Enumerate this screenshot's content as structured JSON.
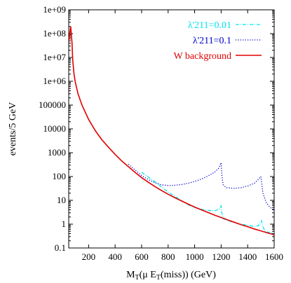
{
  "chart_data": {
    "type": "line",
    "xlabel": "M_T(μ E_T(miss)) (GeV)",
    "ylabel": "events/5 GeV",
    "xlim": [
      50,
      1600
    ],
    "ylim": [
      0.1,
      1000000000
    ],
    "yscale": "log",
    "x_ticks": [
      200,
      400,
      600,
      800,
      1000,
      1200,
      1400,
      1600
    ],
    "x_tick_labels": [
      "200",
      "400",
      "600",
      "800",
      "1000",
      "1200",
      "1400",
      "1600"
    ],
    "y_ticks": [
      0.1,
      1,
      10,
      100,
      1000,
      10000,
      100000,
      1000000,
      10000000,
      100000000,
      1000000000
    ],
    "y_tick_labels": [
      "0.1",
      "1",
      "10",
      "100",
      "1000",
      "10000",
      "100000",
      "1e+06",
      "1e+07",
      "1e+08",
      "1e+09"
    ],
    "grid": false,
    "legend_position": "top-right",
    "series": [
      {
        "name": "λ'211=0.01",
        "color": "#00e5ee",
        "style": "dash-dot",
        "points": [
          [
            600,
            150
          ],
          [
            700,
            60
          ],
          [
            800,
            22
          ],
          [
            900,
            10
          ],
          [
            950,
            6.5
          ],
          [
            1000,
            5
          ],
          [
            1050,
            4.2
          ],
          [
            1100,
            3.8
          ],
          [
            1150,
            3.6
          ],
          [
            1185,
            4.2
          ],
          [
            1200,
            5.8
          ],
          [
            1205,
            3
          ],
          [
            1215,
            1.7
          ],
          [
            1260,
            1.35
          ],
          [
            1300,
            1.15
          ],
          [
            1350,
            1
          ],
          [
            1400,
            0.9
          ],
          [
            1450,
            0.8
          ],
          [
            1480,
            0.85
          ],
          [
            1495,
            1.2
          ],
          [
            1505,
            1.4
          ],
          [
            1512,
            0.9
          ],
          [
            1530,
            0.5
          ],
          [
            1560,
            0.45
          ],
          [
            1600,
            0.42
          ]
        ]
      },
      {
        "name": "λ'211=0.1",
        "color": "#0000cc",
        "style": "dotted",
        "points": [
          [
            500,
            330
          ],
          [
            550,
            190
          ],
          [
            600,
            110
          ],
          [
            650,
            75
          ],
          [
            700,
            55
          ],
          [
            750,
            45
          ],
          [
            800,
            42
          ],
          [
            850,
            43
          ],
          [
            900,
            46
          ],
          [
            950,
            52
          ],
          [
            1000,
            62
          ],
          [
            1050,
            78
          ],
          [
            1100,
            105
          ],
          [
            1150,
            150
          ],
          [
            1180,
            220
          ],
          [
            1195,
            330
          ],
          [
            1200,
            380
          ],
          [
            1205,
            120
          ],
          [
            1215,
            45
          ],
          [
            1240,
            34
          ],
          [
            1300,
            32
          ],
          [
            1350,
            34
          ],
          [
            1400,
            40
          ],
          [
            1450,
            52
          ],
          [
            1480,
            75
          ],
          [
            1500,
            100
          ],
          [
            1505,
            60
          ],
          [
            1515,
            20
          ],
          [
            1540,
            8
          ],
          [
            1570,
            5
          ],
          [
            1600,
            4
          ]
        ]
      },
      {
        "name": "W background",
        "color": "#e00000",
        "style": "solid",
        "points": [
          [
            50,
            50000000
          ],
          [
            65,
            200000000
          ],
          [
            75,
            40000000
          ],
          [
            80,
            8000000
          ],
          [
            90,
            2000000
          ],
          [
            100,
            900000
          ],
          [
            120,
            300000
          ],
          [
            150,
            100000
          ],
          [
            200,
            25000
          ],
          [
            250,
            8500
          ],
          [
            300,
            3500
          ],
          [
            350,
            1700
          ],
          [
            400,
            850
          ],
          [
            450,
            450
          ],
          [
            500,
            260
          ],
          [
            550,
            150
          ],
          [
            600,
            90
          ],
          [
            650,
            58
          ],
          [
            700,
            38
          ],
          [
            750,
            26
          ],
          [
            800,
            18
          ],
          [
            850,
            13
          ],
          [
            900,
            9.5
          ],
          [
            950,
            7
          ],
          [
            1000,
            5.2
          ],
          [
            1050,
            4
          ],
          [
            1100,
            3.1
          ],
          [
            1150,
            2.4
          ],
          [
            1200,
            1.9
          ],
          [
            1250,
            1.5
          ],
          [
            1300,
            1.2
          ],
          [
            1350,
            0.95
          ],
          [
            1400,
            0.78
          ],
          [
            1450,
            0.63
          ],
          [
            1500,
            0.52
          ],
          [
            1550,
            0.43
          ],
          [
            1600,
            0.36
          ]
        ]
      }
    ]
  }
}
